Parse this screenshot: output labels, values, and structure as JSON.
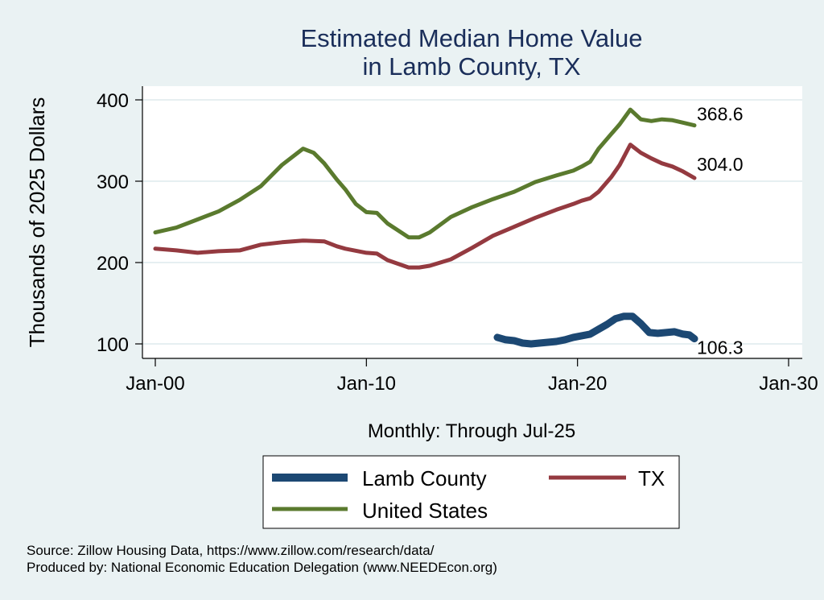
{
  "chart_data": {
    "type": "line",
    "title": "Estimated Median Home Value",
    "subtitle": "in Lamb County, TX",
    "xlabel": "Monthly: Through Jul-25",
    "ylabel": "Thousands of 2025 Dollars",
    "xlim": [
      2000,
      2030
    ],
    "ylim": [
      100,
      400
    ],
    "x_ticks": [
      {
        "value": 2000,
        "label": "Jan-00"
      },
      {
        "value": 2010,
        "label": "Jan-10"
      },
      {
        "value": 2020,
        "label": "Jan-20"
      },
      {
        "value": 2030,
        "label": "Jan-30"
      }
    ],
    "y_ticks": [
      {
        "value": 100,
        "label": "100"
      },
      {
        "value": 200,
        "label": "200"
      },
      {
        "value": 300,
        "label": "300"
      },
      {
        "value": 400,
        "label": "400"
      }
    ],
    "grid": true,
    "legend_position": "bottom",
    "series": [
      {
        "name": "Lamb County",
        "color": "#1c4873",
        "end_label": "106.3",
        "x": [
          2016.2,
          2016.6,
          2017.0,
          2017.4,
          2017.8,
          2018.2,
          2018.6,
          2019.0,
          2019.4,
          2019.8,
          2020.2,
          2020.6,
          2021.0,
          2021.4,
          2021.8,
          2022.2,
          2022.6,
          2023.0,
          2023.4,
          2023.8,
          2024.2,
          2024.6,
          2025.0,
          2025.3,
          2025.54
        ],
        "values": [
          108,
          105,
          104,
          101,
          100,
          101,
          102,
          103,
          105,
          108,
          110,
          112,
          118,
          124,
          131,
          134,
          134,
          125,
          114,
          113,
          114,
          115,
          112,
          111,
          106.3
        ]
      },
      {
        "name": "TX",
        "color": "#943a40",
        "end_label": "304.0",
        "x": [
          2000.0,
          2001.0,
          2002.0,
          2003.0,
          2004.0,
          2005.0,
          2006.0,
          2007.0,
          2008.0,
          2008.6,
          2009.0,
          2010.0,
          2010.5,
          2011.0,
          2012.0,
          2012.5,
          2013.0,
          2014.0,
          2015.0,
          2016.0,
          2017.0,
          2018.0,
          2019.0,
          2019.8,
          2020.2,
          2020.6,
          2021.0,
          2021.6,
          2022.0,
          2022.5,
          2023.0,
          2023.5,
          2024.0,
          2024.5,
          2025.0,
          2025.54
        ],
        "values": [
          217,
          215,
          212,
          214,
          215,
          222,
          225,
          227,
          226,
          220,
          217,
          212,
          211,
          203,
          194,
          194,
          196,
          204,
          218,
          233,
          244,
          255,
          265,
          272,
          276,
          279,
          287,
          305,
          320,
          345,
          335,
          328,
          322,
          318,
          312,
          304.0
        ]
      },
      {
        "name": "United States",
        "color": "#5a7a2e",
        "end_label": "368.6",
        "x": [
          2000.0,
          2001.0,
          2002.0,
          2003.0,
          2004.0,
          2005.0,
          2006.0,
          2006.8,
          2007.0,
          2007.5,
          2008.0,
          2008.6,
          2009.0,
          2009.5,
          2010.0,
          2010.5,
          2011.0,
          2012.0,
          2012.5,
          2013.0,
          2014.0,
          2015.0,
          2016.0,
          2017.0,
          2018.0,
          2019.0,
          2019.8,
          2020.2,
          2020.6,
          2021.0,
          2021.6,
          2022.0,
          2022.5,
          2023.0,
          2023.5,
          2024.0,
          2024.5,
          2025.0,
          2025.54
        ],
        "values": [
          237,
          243,
          253,
          263,
          277,
          294,
          320,
          336,
          340,
          335,
          322,
          302,
          290,
          272,
          262,
          261,
          248,
          231,
          231,
          237,
          256,
          268,
          278,
          287,
          299,
          307,
          313,
          318,
          324,
          340,
          358,
          370,
          388,
          376,
          374,
          376,
          375,
          372,
          368.6
        ]
      }
    ],
    "source_line": "Source: Zillow Housing Data, https://www.zillow.com/research/data/",
    "produced_line": "Produced by: National Economic Education Delegation (www.NEEDEcon.org)"
  }
}
